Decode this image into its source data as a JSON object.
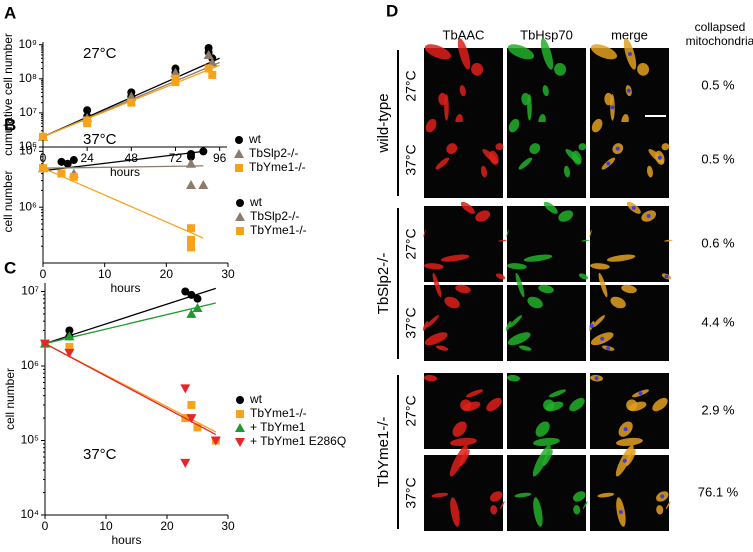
{
  "chart_data": [
    {
      "type": "scatter",
      "panel_label": "A",
      "annotation": "27°C",
      "ylabel": "cumulative cell number",
      "xlabel": "hours",
      "xlim": [
        0,
        100
      ],
      "xticks": [
        0,
        24,
        48,
        72,
        96
      ],
      "yscale": "log",
      "ylim": [
        1000000,
        1200000000
      ],
      "yticks": [
        {
          "value": 1000000,
          "label": "10⁶"
        },
        {
          "value": 10000000,
          "label": "10⁷"
        },
        {
          "value": 100000000,
          "label": "10⁸"
        },
        {
          "value": 1000000000,
          "label": "10⁹"
        }
      ],
      "legend": "right",
      "series": [
        {
          "name": "wt",
          "color": "#000000",
          "marker": "circle",
          "x": [
            0,
            24,
            24,
            48,
            48,
            72,
            72,
            90,
            90,
            92
          ],
          "values": [
            2000000,
            8000000,
            12000000,
            40000000,
            30000000,
            200000000,
            150000000,
            800000000,
            600000000,
            400000000
          ],
          "fit": {
            "x": [
              0,
              96
            ],
            "values": [
              2000000,
              400000000
            ]
          }
        },
        {
          "name": "TbSlp2-/-",
          "color": "#8c7b6b",
          "marker": "triangle",
          "x": [
            0,
            24,
            48,
            72,
            90,
            92
          ],
          "values": [
            2000000,
            7000000,
            30000000,
            150000000,
            500000000,
            300000000
          ],
          "fit": {
            "x": [
              0,
              96
            ],
            "values": [
              2000000,
              300000000
            ]
          }
        },
        {
          "name": "TbYme1-/-",
          "color": "#f7a21b",
          "marker": "square",
          "x": [
            0,
            24,
            24,
            48,
            72,
            72,
            90,
            92
          ],
          "values": [
            2000000,
            6000000,
            5000000,
            20000000,
            100000000,
            80000000,
            200000000,
            130000000
          ],
          "fit": {
            "x": [
              0,
              96
            ],
            "values": [
              2000000,
              250000000
            ]
          }
        }
      ]
    },
    {
      "type": "scatter",
      "panel_label": "B",
      "annotation": "37°C",
      "ylabel": "cell number",
      "xlabel": "hours",
      "xlim": [
        0,
        30
      ],
      "xticks": [
        0,
        10,
        20,
        30
      ],
      "yscale": "log",
      "ylim": [
        100000,
        16000000
      ],
      "yticks": [
        {
          "value": 1000000,
          "label": "10⁶"
        },
        {
          "value": 10000000,
          "label": "10⁷"
        }
      ],
      "legend": "right",
      "series": [
        {
          "name": "wt",
          "color": "#000000",
          "marker": "circle",
          "x": [
            0,
            3,
            4,
            5,
            24,
            24,
            26
          ],
          "values": [
            5000000,
            6500000,
            6000000,
            7000000,
            9000000,
            8000000,
            10000000
          ],
          "fit": {
            "x": [
              0,
              26
            ],
            "values": [
              4500000,
              10000000
            ]
          }
        },
        {
          "name": "TbSlp2-/-",
          "color": "#8c7b6b",
          "marker": "triangle",
          "x": [
            0,
            5,
            24,
            24,
            26
          ],
          "values": [
            5000000,
            4000000,
            6000000,
            2500000,
            2500000
          ],
          "fit": {
            "x": [
              0,
              26
            ],
            "values": [
              5000000,
              5500000
            ]
          }
        },
        {
          "name": "TbYme1-/-",
          "color": "#f7a21b",
          "marker": "square",
          "x": [
            0,
            3,
            5,
            24,
            24,
            24
          ],
          "values": [
            5000000,
            4000000,
            3500000,
            420000,
            260000,
            190000
          ],
          "fit": {
            "x": [
              0,
              26
            ],
            "values": [
              5000000,
              280000
            ]
          }
        }
      ]
    },
    {
      "type": "scatter",
      "panel_label": "C",
      "annotation": "37°C",
      "ylabel": "cell number",
      "xlabel": "hours",
      "xlim": [
        0,
        30
      ],
      "xticks": [
        0,
        10,
        20,
        30
      ],
      "yscale": "log",
      "ylim": [
        10000,
        13000000
      ],
      "yticks": [
        {
          "value": 10000,
          "label": "10⁴"
        },
        {
          "value": 100000,
          "label": "10⁵"
        },
        {
          "value": 1000000,
          "label": "10⁶"
        },
        {
          "value": 10000000,
          "label": "10⁷"
        }
      ],
      "legend": "right",
      "series": [
        {
          "name": "wt",
          "color": "#000000",
          "marker": "circle",
          "x": [
            0,
            4,
            4,
            23,
            24,
            25
          ],
          "values": [
            2000000,
            2500000,
            3000000,
            10000000,
            9000000,
            8000000
          ],
          "fit": {
            "x": [
              0,
              28
            ],
            "values": [
              2000000,
              11000000
            ]
          }
        },
        {
          "name": "TbYme1-/-",
          "color": "#f7a21b",
          "marker": "square",
          "x": [
            0,
            4,
            23,
            24,
            25,
            28
          ],
          "values": [
            2000000,
            1800000,
            200000,
            300000,
            150000,
            100000
          ],
          "fit": {
            "x": [
              0,
              28
            ],
            "values": [
              2000000,
              130000
            ]
          }
        },
        {
          "name": "+ TbYme1",
          "color": "#1e9a2e",
          "marker": "triangle",
          "x": [
            0,
            4,
            24,
            25
          ],
          "values": [
            2000000,
            2500000,
            5000000,
            6000000
          ],
          "fit": {
            "x": [
              0,
              28
            ],
            "values": [
              2000000,
              7000000
            ]
          }
        },
        {
          "name": "+ TbYme1 E286Q",
          "color": "#e8262a",
          "marker": "triangle-down",
          "x": [
            0,
            4,
            23,
            23,
            24,
            28
          ],
          "values": [
            2000000,
            1500000,
            500000,
            50000,
            200000,
            100000
          ],
          "fit": {
            "x": [
              0,
              28
            ],
            "values": [
              2000000,
              120000
            ]
          }
        }
      ]
    }
  ],
  "panel_d": {
    "label": "D",
    "columns": [
      "TbAAC",
      "TbHsp70",
      "merge"
    ],
    "quantity_header": [
      "collapsed",
      "mitochondria"
    ],
    "groups": [
      {
        "name": "wild-type",
        "rows": [
          {
            "temperature": "27°C",
            "value": "0.5 %"
          },
          {
            "temperature": "37°C",
            "value": "0.5 %"
          }
        ]
      },
      {
        "name": "TbSlp2-/-",
        "rows": [
          {
            "temperature": "27°C",
            "value": "0.6 %"
          },
          {
            "temperature": "37°C",
            "value": "4.4 %"
          }
        ]
      },
      {
        "name": "TbYme1-/-",
        "rows": [
          {
            "temperature": "27°C",
            "value": "2.9 %"
          },
          {
            "temperature": "37°C",
            "value": "76.1 %"
          }
        ]
      }
    ]
  }
}
